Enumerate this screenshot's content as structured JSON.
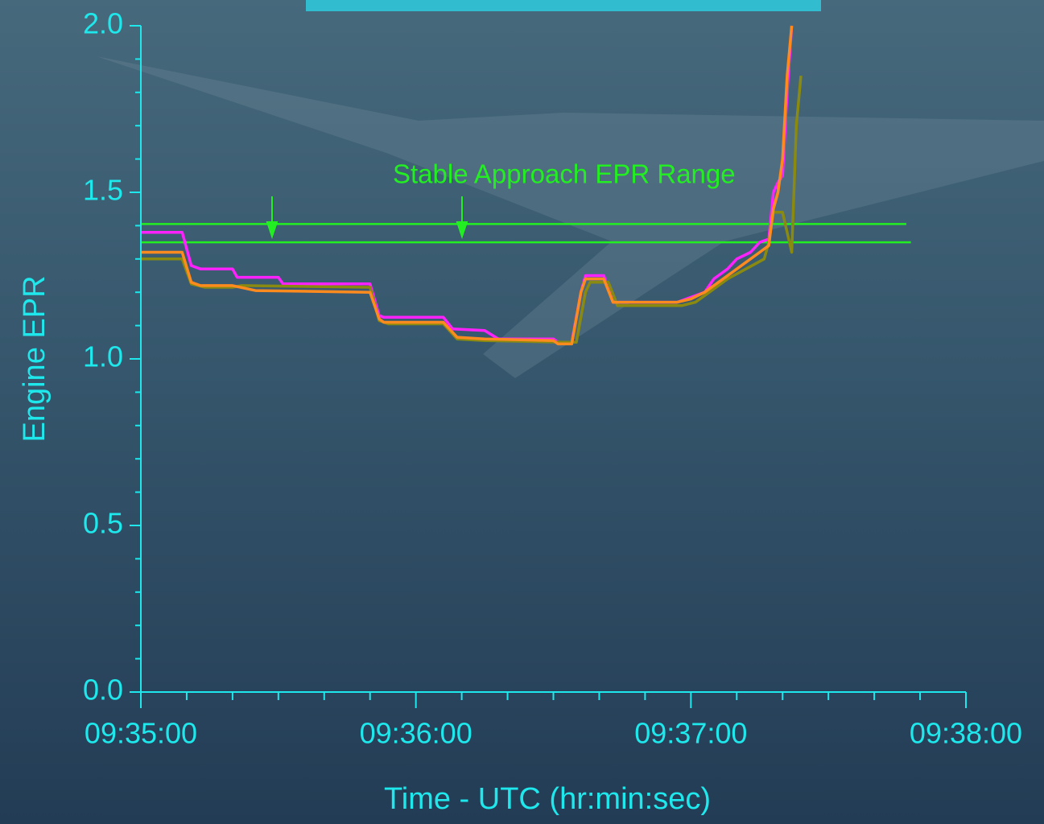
{
  "chart_data": {
    "type": "line",
    "xlabel": "Time - UTC (hr:min:sec)",
    "ylabel": "Engine EPR",
    "xlim": [
      "09:35:00",
      "09:38:00"
    ],
    "xticks": [
      "09:35:00",
      "09:36:00",
      "09:37:00",
      "09:38:00"
    ],
    "xticks_minor": [
      "09:35:10",
      "09:35:20",
      "09:35:30",
      "09:35:40",
      "09:35:50",
      "09:36:10",
      "09:36:20",
      "09:36:30",
      "09:36:40",
      "09:36:50",
      "09:37:10",
      "09:37:20",
      "09:37:30",
      "09:37:40",
      "09:37:50"
    ],
    "ylim": [
      0,
      2
    ],
    "yticks": [
      {
        "value": 0,
        "label": "0.0"
      },
      0.5,
      {
        "value": 1,
        "label": "1.0"
      },
      1.5,
      {
        "value": 2,
        "label": "2.0"
      }
    ],
    "yticks_minor": [
      0.1,
      0.2,
      0.3,
      0.4,
      0.6,
      0.7,
      0.8,
      0.9,
      1.1,
      1.2,
      1.3,
      1.4,
      1.6,
      1.7,
      1.8,
      1.9
    ],
    "axis_color": "#1fe8ec",
    "series": [
      {
        "color": "#ff22ff",
        "x": [
          "09:35:00",
          "09:35:09",
          "09:35:11",
          "09:35:13",
          "09:35:20",
          "09:35:21",
          "09:35:30",
          "09:35:31",
          "09:35:50",
          "09:35:52",
          "09:35:53",
          "09:36:06",
          "09:36:08",
          "09:36:15",
          "09:36:18",
          "09:36:30",
          "09:36:31",
          "09:36:34",
          "09:36:36",
          "09:36:37",
          "09:36:41",
          "09:36:43",
          "09:36:57",
          "09:37:00",
          "09:37:03",
          "09:37:05",
          "09:37:08",
          "09:37:10",
          "09:37:13",
          "09:37:15",
          "09:37:17",
          "09:37:18",
          "09:37:19",
          "09:37:20",
          "09:37:21",
          "09:37:22"
        ],
        "values": [
          1.38,
          1.38,
          1.28,
          1.27,
          1.27,
          1.245,
          1.245,
          1.225,
          1.225,
          1.13,
          1.125,
          1.125,
          1.09,
          1.085,
          1.06,
          1.06,
          1.05,
          1.05,
          1.2,
          1.25,
          1.25,
          1.17,
          1.17,
          1.185,
          1.2,
          1.24,
          1.27,
          1.3,
          1.32,
          1.35,
          1.36,
          1.5,
          1.53,
          1.55,
          1.8,
          2.0
        ]
      },
      {
        "color": "#8a8a10",
        "x": [
          "09:35:00",
          "09:35:09",
          "09:35:11",
          "09:35:14",
          "09:35:20",
          "09:35:22",
          "09:35:50",
          "09:35:52",
          "09:35:54",
          "09:36:06",
          "09:36:09",
          "09:36:15",
          "09:36:32",
          "09:36:35",
          "09:36:37",
          "09:36:38",
          "09:36:42",
          "09:36:44",
          "09:36:58",
          "09:37:01",
          "09:37:04",
          "09:37:08",
          "09:37:12",
          "09:37:16",
          "09:37:17",
          "09:37:18",
          "09:37:20",
          "09:37:22",
          "09:37:23",
          "09:37:24"
        ],
        "values": [
          1.3,
          1.3,
          1.225,
          1.215,
          1.215,
          1.22,
          1.215,
          1.115,
          1.105,
          1.105,
          1.06,
          1.055,
          1.05,
          1.05,
          1.2,
          1.23,
          1.23,
          1.16,
          1.16,
          1.17,
          1.2,
          1.24,
          1.27,
          1.3,
          1.35,
          1.44,
          1.44,
          1.32,
          1.7,
          1.85
        ]
      },
      {
        "color": "#ff8a1e",
        "x": [
          "09:35:00",
          "09:35:09",
          "09:35:11",
          "09:35:13",
          "09:35:20",
          "09:35:25",
          "09:35:50",
          "09:35:52",
          "09:35:53",
          "09:36:06",
          "09:36:09",
          "09:36:15",
          "09:36:30",
          "09:36:31",
          "09:36:34",
          "09:36:36",
          "09:36:37",
          "09:36:41",
          "09:36:43",
          "09:36:57",
          "09:37:00",
          "09:37:03",
          "09:37:06",
          "09:37:09",
          "09:37:12",
          "09:37:15",
          "09:37:17",
          "09:37:18",
          "09:37:19",
          "09:37:20",
          "09:37:21",
          "09:37:22"
        ],
        "values": [
          1.32,
          1.32,
          1.23,
          1.22,
          1.22,
          1.205,
          1.2,
          1.12,
          1.11,
          1.11,
          1.065,
          1.06,
          1.055,
          1.045,
          1.045,
          1.2,
          1.24,
          1.24,
          1.17,
          1.17,
          1.18,
          1.2,
          1.23,
          1.26,
          1.29,
          1.32,
          1.34,
          1.45,
          1.5,
          1.6,
          1.85,
          2.0
        ]
      }
    ],
    "reference_lines": [
      {
        "value": 1.405,
        "x": [
          "09:35:00",
          "09:37:47"
        ],
        "color": "#22ee22"
      },
      {
        "value": 1.35,
        "x": [
          "09:35:00",
          "09:37:48"
        ],
        "color": "#22ee22"
      }
    ],
    "annotation": "Stable Approach EPR Range"
  }
}
